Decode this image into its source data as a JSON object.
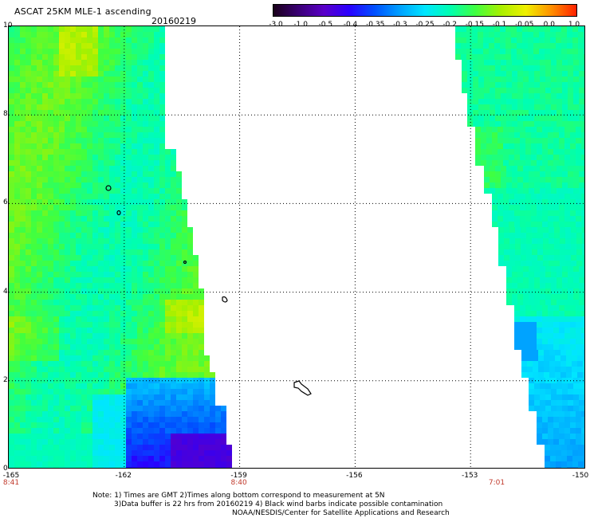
{
  "header": {
    "title": "ASCAT 25KM MLE-1 ascending",
    "date": "20160219"
  },
  "colorbar": {
    "ticks": [
      "-3.0",
      "-1.0",
      "-0.5",
      "-0.4",
      "-0.35",
      "-0.3",
      "-0.25",
      "-0.2",
      "-0.15",
      "-0.1",
      "-0.05",
      "0.0",
      "1.0"
    ],
    "colors": [
      "#1a001a",
      "#3a0075",
      "#5a00c8",
      "#2a00ff",
      "#0050ff",
      "#00a0ff",
      "#00e6ff",
      "#00ffb0",
      "#40ff40",
      "#a8f000",
      "#f0f000",
      "#ff9000",
      "#ff2000"
    ]
  },
  "map": {
    "y_ticks": [
      "0",
      "2",
      "4",
      "6",
      "8",
      "10"
    ],
    "x_ticks": [
      "-165",
      "-162",
      "-159",
      "-156",
      "-153",
      "-150"
    ],
    "x_range": [
      -165,
      -150
    ],
    "y_range": [
      0,
      10
    ],
    "swath_times": [
      "8:41",
      "8:40",
      "7:01"
    ],
    "swath_time_lon": [
      -165,
      -159,
      -152.3
    ]
  },
  "notes": {
    "line1": "Note: 1) Times are GMT 2)Times along bottom correspond to measurement at 5N",
    "line2": "3)Data buffer is 22 hrs from 20160219 4) Black wind barbs indicate possible contamination",
    "line3": "NOAA/NESDIS/Center for Satellite Applications and Research"
  }
}
